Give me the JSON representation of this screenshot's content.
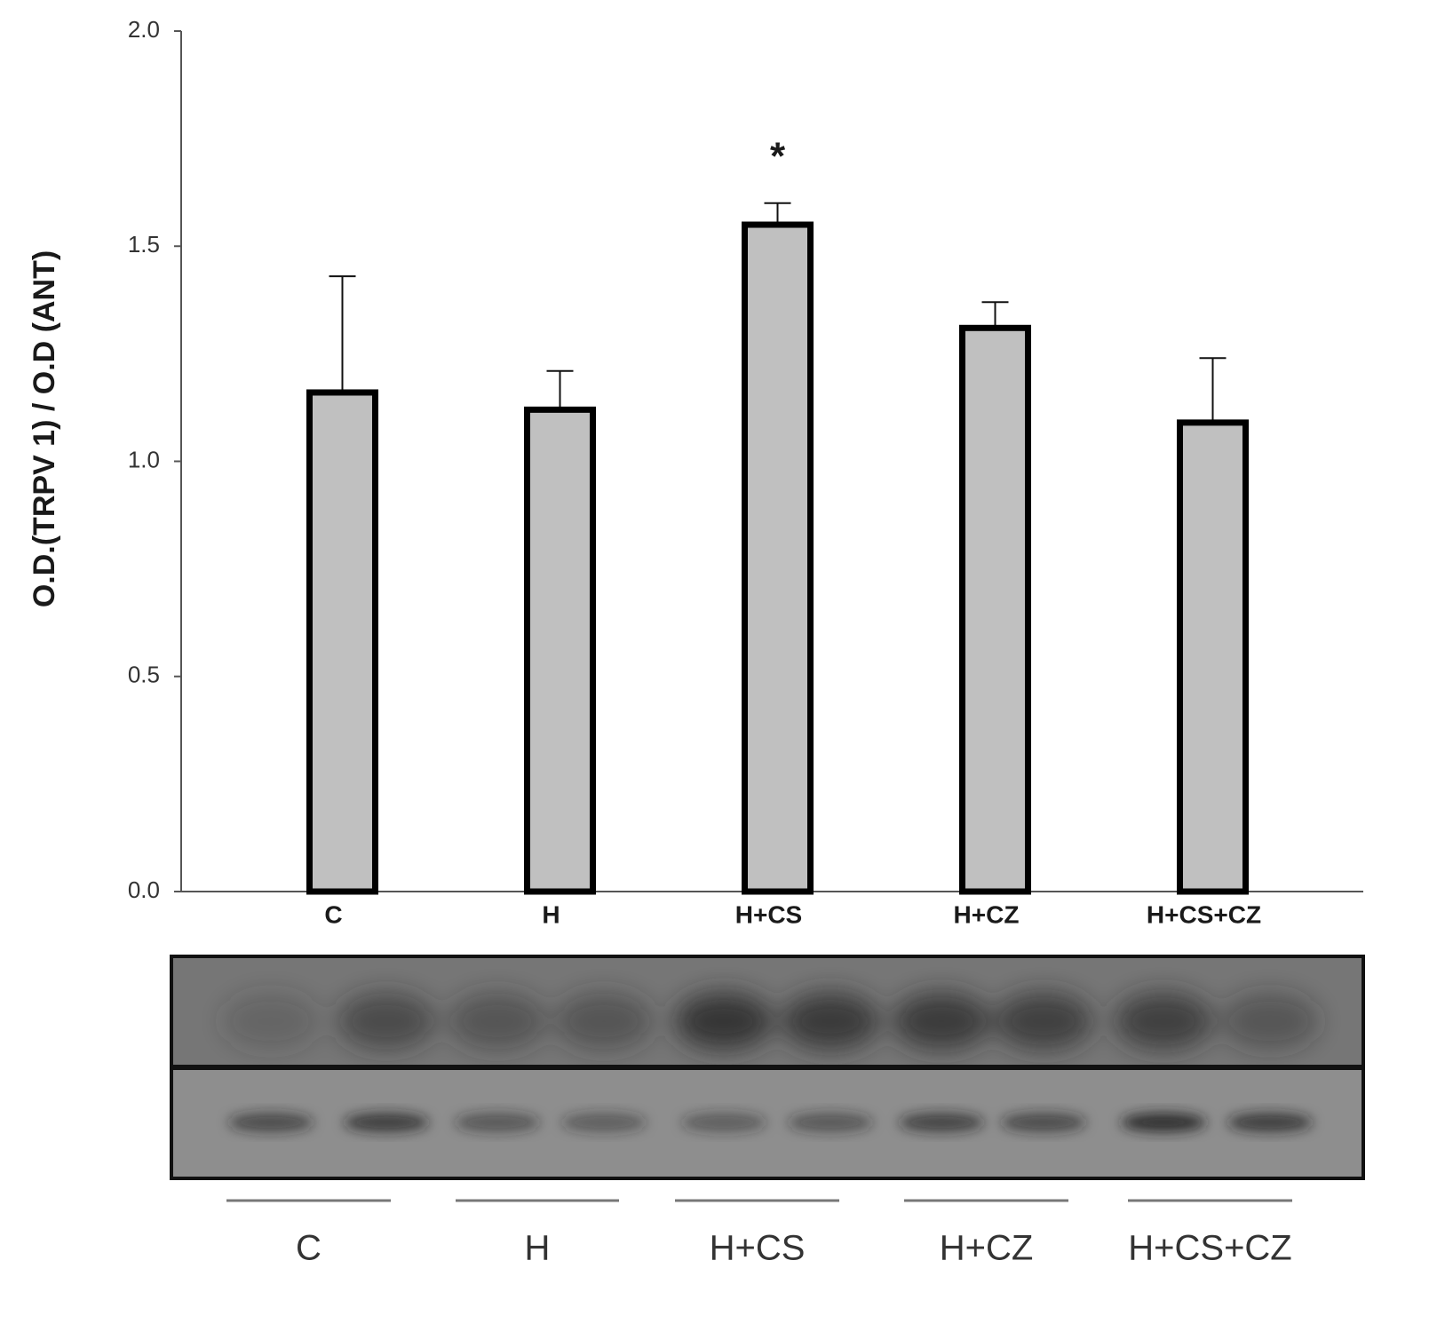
{
  "chart_data": {
    "type": "bar",
    "y_label": "O.D.(TRPV 1) / O.D (ANT)",
    "categories": [
      "C",
      "H",
      "H+CS",
      "H+CZ",
      "H+CS+CZ"
    ],
    "values": [
      1.16,
      1.12,
      1.55,
      1.31,
      1.09
    ],
    "errors": [
      0.27,
      0.09,
      0.05,
      0.06,
      0.15
    ],
    "color": "#c0c0c0",
    "ylim": [
      0,
      2
    ],
    "yticks": [
      {
        "value": 0,
        "label": "0.0"
      },
      0.5,
      {
        "value": 1,
        "label": "1.0"
      },
      1.5,
      {
        "value": 2,
        "label": "2.0"
      }
    ],
    "annotations": [
      {
        "text": "*",
        "category": "H+CS"
      }
    ]
  },
  "blot": {
    "lane_labels": [
      "C",
      "H",
      "H+CS",
      "H+CZ",
      "H+CS+CZ"
    ]
  }
}
